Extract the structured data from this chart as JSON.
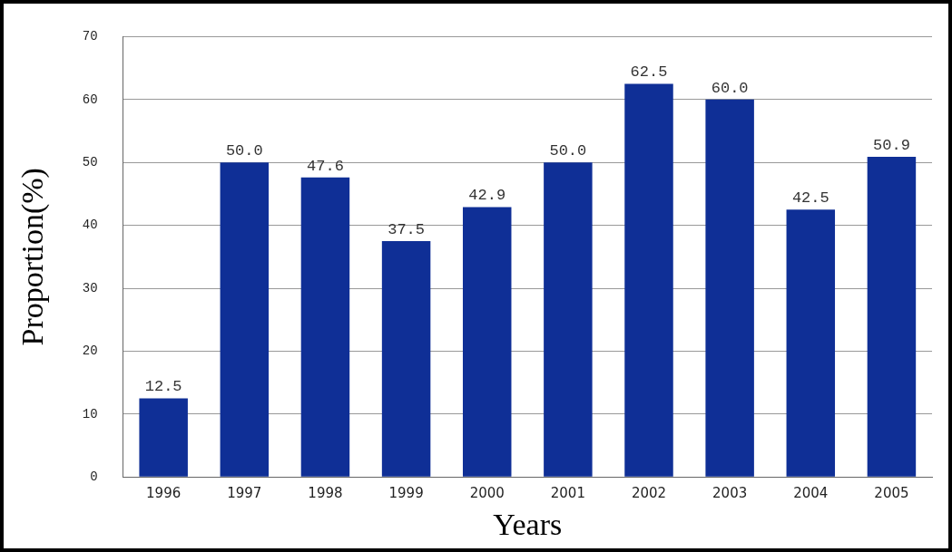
{
  "chart_data": {
    "type": "bar",
    "xlabel": "Years",
    "ylabel": "Proportion(%)",
    "categories": [
      "1996",
      "1997",
      "1998",
      "1999",
      "2000",
      "2001",
      "2002",
      "2003",
      "2004",
      "2005"
    ],
    "values": [
      12.5,
      50.0,
      47.6,
      37.5,
      42.9,
      50.0,
      62.5,
      60.0,
      42.5,
      50.9
    ],
    "value_labels": [
      "12.5",
      "50.0",
      "47.6",
      "37.5",
      "42.9",
      "50.0",
      "62.5",
      "60.0",
      "42.5",
      "50.9"
    ],
    "color": "#0f2f96",
    "ylim": [
      0,
      70
    ],
    "yticks": [
      0,
      10,
      20,
      30,
      40,
      50,
      60,
      70
    ],
    "grid": "y",
    "legend": false
  }
}
